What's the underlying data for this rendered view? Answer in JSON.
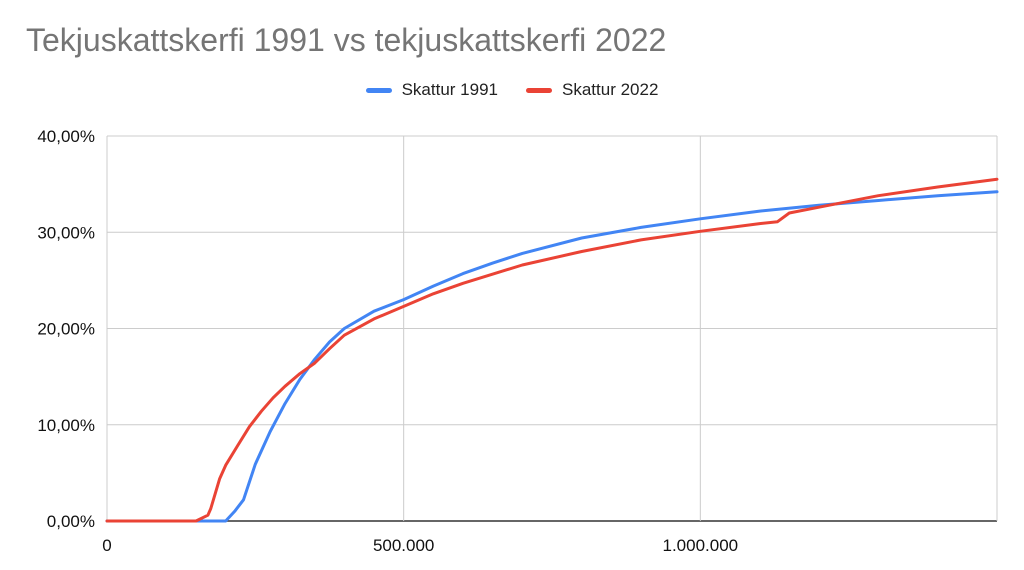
{
  "chart_data": {
    "type": "line",
    "title": "Tekjuskattskerfi 1991 vs tekjuskattskerfi 2022",
    "xlabel": "",
    "ylabel": "",
    "xlim": [
      0,
      1500000
    ],
    "ylim": [
      0,
      40
    ],
    "x_ticks": [
      0,
      500000,
      1000000
    ],
    "x_tick_labels": [
      "0",
      "500.000",
      "1.000.000"
    ],
    "y_ticks": [
      0,
      10,
      20,
      30,
      40
    ],
    "y_tick_labels": [
      "0,00%",
      "10,00%",
      "20,00%",
      "30,00%",
      "40,00%"
    ],
    "grid": true,
    "legend_position": "top-center",
    "series": [
      {
        "name": "Skattur 1991",
        "color": "#4285f4",
        "x": [
          0,
          100000,
          200000,
          215000,
          230000,
          250000,
          275000,
          300000,
          325000,
          350000,
          375000,
          400000,
          450000,
          500000,
          550000,
          600000,
          650000,
          700000,
          800000,
          900000,
          1000000,
          1100000,
          1200000,
          1300000,
          1400000,
          1500000
        ],
        "values": [
          0,
          0,
          0,
          1.0,
          2.2,
          5.9,
          9.3,
          12.2,
          14.7,
          16.8,
          18.6,
          20.0,
          21.8,
          23.0,
          24.4,
          25.7,
          26.8,
          27.8,
          29.4,
          30.5,
          31.4,
          32.2,
          32.8,
          33.3,
          33.8,
          34.2
        ]
      },
      {
        "name": "Skattur 2022",
        "color": "#ea4335",
        "x": [
          0,
          100000,
          150000,
          170000,
          175000,
          190000,
          200000,
          220000,
          240000,
          260000,
          280000,
          300000,
          325000,
          350000,
          375000,
          400000,
          450000,
          500000,
          550000,
          600000,
          700000,
          800000,
          900000,
          1000000,
          1100000,
          1130000,
          1150000,
          1200000,
          1300000,
          1400000,
          1500000
        ],
        "values": [
          0,
          0,
          0,
          0.6,
          1.3,
          4.4,
          5.8,
          7.8,
          9.8,
          11.4,
          12.8,
          14.0,
          15.3,
          16.4,
          17.9,
          19.3,
          21.0,
          22.3,
          23.6,
          24.7,
          26.6,
          28.0,
          29.2,
          30.1,
          30.9,
          31.1,
          32.0,
          32.6,
          33.8,
          34.7,
          35.5
        ]
      }
    ]
  }
}
